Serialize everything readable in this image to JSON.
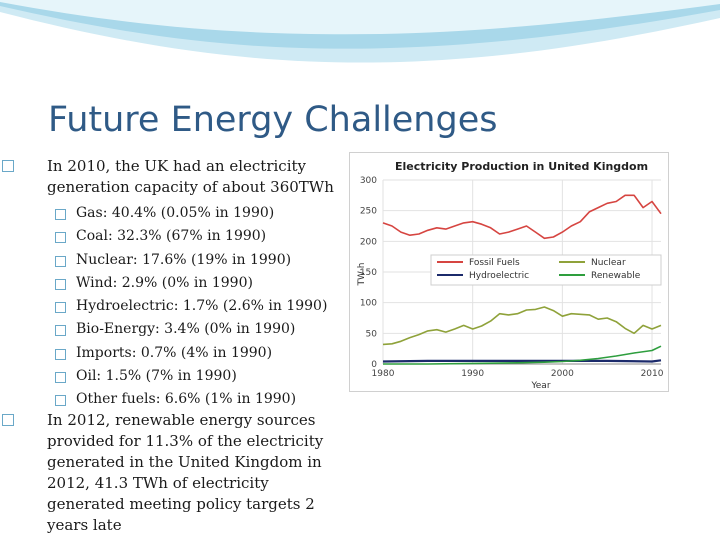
{
  "slide": {
    "title": "Future Energy Challenges",
    "bullet1": "In 2010, the UK had an electricity generation capacity of about 360TWh",
    "sub_items": [
      "Gas: 40.4% (0.05% in 1990)",
      "Coal: 32.3% (67% in 1990)",
      "Nuclear: 17.6% (19% in 1990)",
      "Wind: 2.9% (0% in 1990)",
      "Hydroelectric: 1.7% (2.6% in 1990)",
      "Bio-Energy: 3.4% (0% in 1990)",
      "Imports: 0.7% (4% in 1990)",
      "Oil: 1.5% (7% in 1990)",
      "Other fuels: 6.6% (1% in 1990)"
    ],
    "bullet2": "In 2012, renewable energy sources provided for 11.3% of the electricity generated in the United Kingdom in 2012, 41.3 TWh of electricity generated meeting policy targets 2 years late",
    "bullet_icon": "square-bullet-icon",
    "colors": {
      "title": "#2f5a86",
      "bullet_box": "#6aa8c8",
      "wave": "#a9d8ea"
    }
  },
  "chart_data": {
    "type": "line",
    "title": "Electricity Production in United Kingdom",
    "xlabel": "Year",
    "ylabel": "TW·h",
    "xlim": [
      1980,
      2011
    ],
    "ylim": [
      0,
      300
    ],
    "x_ticks": [
      1980,
      1990,
      2000,
      2010
    ],
    "y_ticks": [
      0,
      50,
      100,
      150,
      200,
      250,
      300
    ],
    "grid": true,
    "legend_position": "center-right",
    "series": [
      {
        "name": "Fossil Fuels",
        "color": "#d64541",
        "x": [
          1980,
          1981,
          1982,
          1983,
          1984,
          1985,
          1986,
          1987,
          1988,
          1989,
          1990,
          1991,
          1992,
          1993,
          1994,
          1995,
          1996,
          1997,
          1998,
          1999,
          2000,
          2001,
          2002,
          2003,
          2004,
          2005,
          2006,
          2007,
          2008,
          2009,
          2010,
          2011
        ],
        "y": [
          230,
          225,
          215,
          210,
          212,
          218,
          222,
          220,
          225,
          230,
          232,
          228,
          222,
          212,
          215,
          220,
          225,
          215,
          205,
          207,
          215,
          225,
          232,
          248,
          255,
          262,
          265,
          275,
          275,
          255,
          265,
          245
        ]
      },
      {
        "name": "Nuclear",
        "color": "#8fa23a",
        "x": [
          1980,
          1981,
          1982,
          1983,
          1984,
          1985,
          1986,
          1987,
          1988,
          1989,
          1990,
          1991,
          1992,
          1993,
          1994,
          1995,
          1996,
          1997,
          1998,
          1999,
          2000,
          2001,
          2002,
          2003,
          2004,
          2005,
          2006,
          2007,
          2008,
          2009,
          2010,
          2011
        ],
        "y": [
          32,
          33,
          37,
          43,
          48,
          54,
          56,
          52,
          57,
          63,
          57,
          62,
          70,
          82,
          80,
          82,
          88,
          89,
          93,
          87,
          78,
          82,
          81,
          80,
          73,
          75,
          69,
          58,
          50,
          63,
          57,
          63
        ]
      },
      {
        "name": "Hydroelectric",
        "color": "#1b2a6b",
        "x": [
          1980,
          1985,
          1990,
          1995,
          2000,
          2005,
          2010,
          2011
        ],
        "y": [
          4,
          5,
          5,
          5,
          5,
          5,
          4,
          6
        ]
      },
      {
        "name": "Renewable",
        "color": "#2e9e3e",
        "x": [
          1980,
          1985,
          1990,
          1995,
          1998,
          2000,
          2002,
          2004,
          2006,
          2008,
          2010,
          2011
        ],
        "y": [
          0,
          0,
          1,
          2,
          3,
          4,
          6,
          9,
          13,
          18,
          22,
          29
        ]
      }
    ]
  }
}
